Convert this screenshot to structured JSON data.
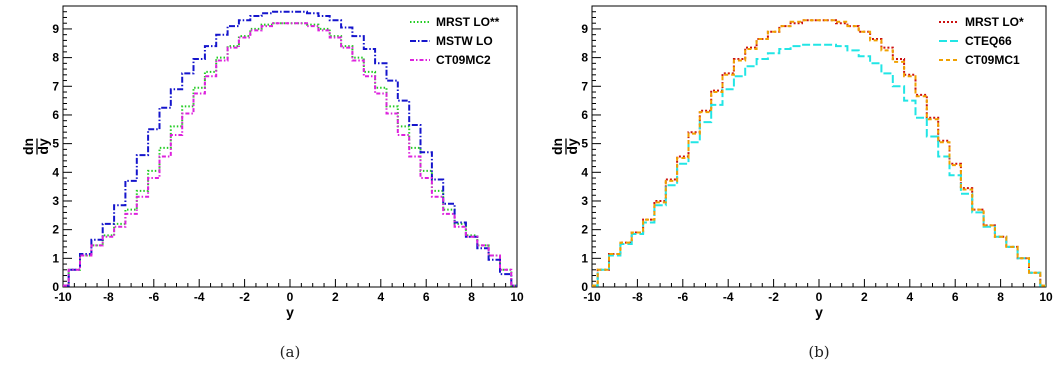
{
  "panels": [
    {
      "caption": "(a)",
      "chart_data": {
        "type": "line",
        "xlabel": "y",
        "ylabel_num": "dn",
        "ylabel_den": "dy",
        "xlim": [
          -10,
          10
        ],
        "ylim": [
          0,
          9.8
        ],
        "xticks": [
          "-10",
          "-8",
          "-6",
          "-4",
          "-2",
          "0",
          "2",
          "4",
          "6",
          "8",
          "10"
        ],
        "yticks": [
          "0",
          "1",
          "2",
          "3",
          "4",
          "5",
          "6",
          "7",
          "8",
          "9"
        ],
        "legend_position": "top-right",
        "series": [
          {
            "name": "MRST LO**",
            "color": "#22cc22",
            "dash": "1.5,2",
            "x": [
              -10,
              -9.5,
              -9,
              -8.5,
              -8,
              -7.5,
              -7,
              -6.5,
              -6,
              -5.5,
              -5,
              -4.5,
              -4,
              -3.5,
              -3,
              -2.5,
              -2,
              -1.5,
              -1,
              -0.5,
              0,
              0.5,
              1,
              1.5,
              2,
              2.5,
              3,
              3.5,
              4,
              4.5,
              5,
              5.5,
              6,
              6.5,
              7,
              7.5,
              8,
              8.5,
              9,
              9.5,
              10
            ],
            "y": [
              0.05,
              0.6,
              1.1,
              1.45,
              1.8,
              2.2,
              2.7,
              3.35,
              4.05,
              4.85,
              5.6,
              6.3,
              6.95,
              7.5,
              8.0,
              8.4,
              8.75,
              9.0,
              9.15,
              9.2,
              9.2,
              9.2,
              9.15,
              9.0,
              8.75,
              8.4,
              8.0,
              7.5,
              6.95,
              6.3,
              5.6,
              4.85,
              4.05,
              3.35,
              2.7,
              2.2,
              1.8,
              1.45,
              1.1,
              0.6,
              0.05
            ]
          },
          {
            "name": "MSTW LO",
            "color": "#1515cc",
            "dash": "6,2,1.5,2",
            "x": [
              -10,
              -9.5,
              -9,
              -8.5,
              -8,
              -7.5,
              -7,
              -6.5,
              -6,
              -5.5,
              -5,
              -4.5,
              -4,
              -3.5,
              -3,
              -2.5,
              -2,
              -1.5,
              -1,
              -0.5,
              0,
              0.5,
              1,
              1.5,
              2,
              2.5,
              3,
              3.5,
              4,
              4.5,
              5,
              5.5,
              6,
              6.5,
              7,
              7.5,
              8,
              8.5,
              9,
              9.5,
              10
            ],
            "y": [
              0.05,
              0.6,
              1.15,
              1.65,
              2.2,
              2.85,
              3.7,
              4.6,
              5.5,
              6.25,
              6.9,
              7.45,
              7.95,
              8.4,
              8.8,
              9.1,
              9.3,
              9.45,
              9.55,
              9.6,
              9.6,
              9.6,
              9.55,
              9.45,
              9.3,
              9.05,
              8.75,
              8.3,
              7.8,
              7.2,
              6.5,
              5.65,
              4.7,
              3.75,
              2.9,
              2.25,
              1.75,
              1.35,
              0.95,
              0.45,
              0.05
            ]
          },
          {
            "name": "CT09MC2",
            "color": "#dd22dd",
            "dash": "4,2,1.5,2",
            "x": [
              -10,
              -9.5,
              -9,
              -8.5,
              -8,
              -7.5,
              -7,
              -6.5,
              -6,
              -5.5,
              -5,
              -4.5,
              -4,
              -3.5,
              -3,
              -2.5,
              -2,
              -1.5,
              -1,
              -0.5,
              0,
              0.5,
              1,
              1.5,
              2,
              2.5,
              3,
              3.5,
              4,
              4.5,
              5,
              5.5,
              6,
              6.5,
              7,
              7.5,
              8,
              8.5,
              9,
              9.5,
              10
            ],
            "y": [
              0.05,
              0.6,
              1.1,
              1.45,
              1.75,
              2.1,
              2.55,
              3.15,
              3.8,
              4.55,
              5.3,
              6.05,
              6.75,
              7.35,
              7.9,
              8.35,
              8.7,
              8.95,
              9.1,
              9.2,
              9.2,
              9.2,
              9.1,
              8.95,
              8.7,
              8.35,
              7.9,
              7.35,
              6.75,
              6.05,
              5.3,
              4.55,
              3.8,
              3.15,
              2.55,
              2.1,
              1.75,
              1.45,
              1.1,
              0.6,
              0.05
            ]
          }
        ]
      }
    },
    {
      "caption": "(b)",
      "chart_data": {
        "type": "line",
        "xlabel": "y",
        "ylabel_num": "dn",
        "ylabel_den": "dy",
        "xlim": [
          -10,
          10
        ],
        "ylim": [
          0,
          9.8
        ],
        "xticks": [
          "-10",
          "-8",
          "-6",
          "-4",
          "-2",
          "0",
          "2",
          "4",
          "6",
          "8",
          "10"
        ],
        "yticks": [
          "0",
          "1",
          "2",
          "3",
          "4",
          "5",
          "6",
          "7",
          "8",
          "9"
        ],
        "legend_position": "top-right",
        "series": [
          {
            "name": "MRST LO*",
            "color": "#cc1111",
            "dash": "2,2",
            "x": [
              -10,
              -9.5,
              -9,
              -8.5,
              -8,
              -7.5,
              -7,
              -6.5,
              -6,
              -5.5,
              -5,
              -4.5,
              -4,
              -3.5,
              -3,
              -2.5,
              -2,
              -1.5,
              -1,
              -0.5,
              0,
              0.5,
              1,
              1.5,
              2,
              2.5,
              3,
              3.5,
              4,
              4.5,
              5,
              5.5,
              6,
              6.5,
              7,
              7.5,
              8,
              8.5,
              9,
              9.5,
              10
            ],
            "y": [
              0.05,
              0.6,
              1.15,
              1.55,
              1.9,
              2.35,
              3.0,
              3.75,
              4.55,
              5.4,
              6.15,
              6.85,
              7.45,
              7.95,
              8.35,
              8.65,
              8.9,
              9.1,
              9.2,
              9.3,
              9.3,
              9.3,
              9.2,
              9.1,
              8.9,
              8.65,
              8.35,
              7.95,
              7.4,
              6.7,
              5.9,
              5.1,
              4.3,
              3.45,
              2.7,
              2.15,
              1.75,
              1.4,
              1.0,
              0.5,
              0.05
            ]
          },
          {
            "name": "CTEQ66",
            "color": "#22e5e5",
            "dash": "8,3",
            "x": [
              -10,
              -9.5,
              -9,
              -8.5,
              -8,
              -7.5,
              -7,
              -6.5,
              -6,
              -5.5,
              -5,
              -4.5,
              -4,
              -3.5,
              -3,
              -2.5,
              -2,
              -1.5,
              -1,
              -0.5,
              0,
              0.5,
              1,
              1.5,
              2,
              2.5,
              3,
              3.5,
              4,
              4.5,
              5,
              5.5,
              6,
              6.5,
              7,
              7.5,
              8,
              8.5,
              9,
              9.5,
              10
            ],
            "y": [
              0.05,
              0.6,
              1.1,
              1.5,
              1.85,
              2.25,
              2.85,
              3.55,
              4.3,
              5.05,
              5.75,
              6.35,
              6.9,
              7.35,
              7.7,
              7.95,
              8.15,
              8.3,
              8.4,
              8.45,
              8.45,
              8.45,
              8.4,
              8.25,
              8.05,
              7.8,
              7.45,
              7.0,
              6.5,
              5.9,
              5.25,
              4.55,
              3.9,
              3.25,
              2.6,
              2.1,
              1.75,
              1.4,
              1.0,
              0.5,
              0.05
            ]
          },
          {
            "name": "CT09MC1",
            "color": "#f0a000",
            "dash": "4,3",
            "x": [
              -10,
              -9.5,
              -9,
              -8.5,
              -8,
              -7.5,
              -7,
              -6.5,
              -6,
              -5.5,
              -5,
              -4.5,
              -4,
              -3.5,
              -3,
              -2.5,
              -2,
              -1.5,
              -1,
              -0.5,
              0,
              0.5,
              1,
              1.5,
              2,
              2.5,
              3,
              3.5,
              4,
              4.5,
              5,
              5.5,
              6,
              6.5,
              7,
              7.5,
              8,
              8.5,
              9,
              9.5,
              10
            ],
            "y": [
              0.05,
              0.6,
              1.15,
              1.55,
              1.9,
              2.35,
              2.95,
              3.7,
              4.5,
              5.35,
              6.1,
              6.8,
              7.4,
              7.9,
              8.3,
              8.65,
              8.9,
              9.1,
              9.25,
              9.3,
              9.3,
              9.3,
              9.25,
              9.1,
              8.9,
              8.6,
              8.25,
              7.85,
              7.35,
              6.65,
              5.85,
              5.05,
              4.25,
              3.4,
              2.7,
              2.15,
              1.75,
              1.4,
              1.0,
              0.5,
              0.05
            ]
          }
        ]
      }
    }
  ]
}
